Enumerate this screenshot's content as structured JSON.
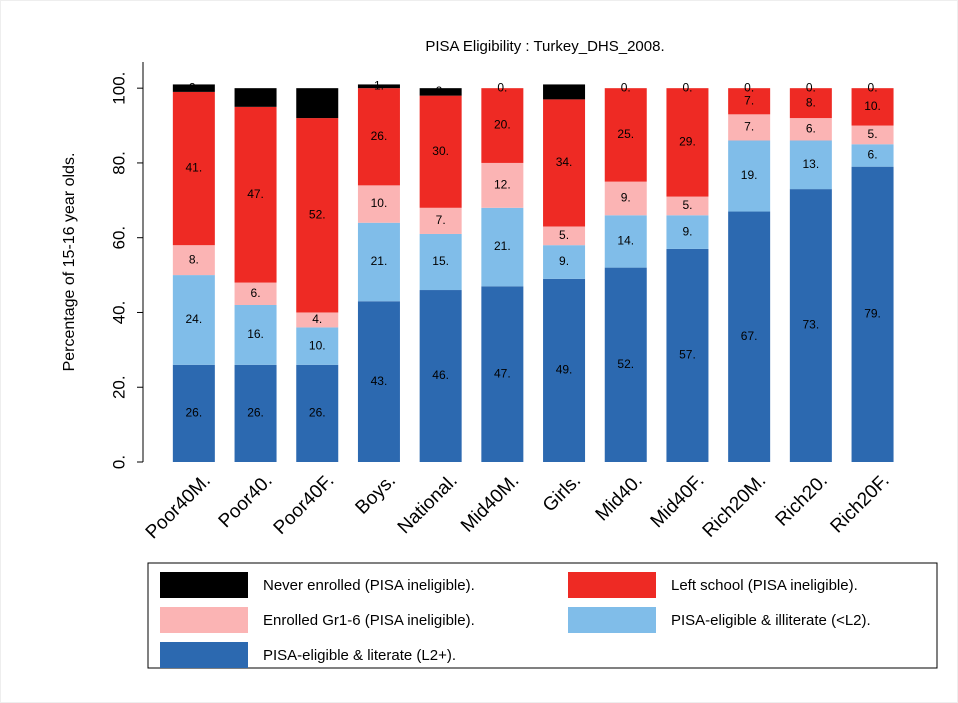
{
  "chart_data": {
    "type": "stacked_bar",
    "title": "PISA Eligibility : Turkey_DHS_2008.",
    "y_label": "Percentage of 15-16 year olds.",
    "categories": [
      "Poor40M.",
      "Poor40.",
      "Poor40F.",
      "Boys.",
      "National.",
      "Mid40M.",
      "Girls.",
      "Mid40.",
      "Mid40F.",
      "Rich20M.",
      "Rich20.",
      "Rich20F."
    ],
    "ylim": [
      0,
      107
    ],
    "yticks": [
      {
        "value": 0,
        "label": "0."
      },
      {
        "value": 20,
        "label": "20."
      },
      {
        "value": 40,
        "label": "40."
      },
      {
        "value": 60,
        "label": "60."
      },
      {
        "value": 80,
        "label": "80."
      },
      {
        "value": 100,
        "label": "100."
      }
    ],
    "series": [
      {
        "name": "Never enrolled (PISA ineligible).",
        "color": "#000000",
        "values": [
          2,
          5,
          8,
          1,
          2,
          0,
          4,
          0,
          0,
          0,
          0,
          0
        ],
        "value_labels": [
          "2.",
          "5.",
          "8.",
          "1.",
          "2.",
          "0.",
          "4.",
          "0.",
          "0.",
          "0.",
          "0.",
          "0."
        ]
      },
      {
        "name": "Left school (PISA ineligible).",
        "color": "#ee2a24",
        "values": [
          41,
          47,
          52,
          26,
          30,
          20,
          34,
          25,
          29,
          7,
          8,
          10
        ],
        "value_labels": [
          "41.",
          "47.",
          "52.",
          "26.",
          "30.",
          "20.",
          "34.",
          "25.",
          "29.",
          "7.",
          "8.",
          "10."
        ]
      },
      {
        "name": "Enrolled Gr1-6 (PISA ineligible).",
        "color": "#fbb4b4",
        "values": [
          8,
          6,
          4,
          10,
          7,
          12,
          5,
          9,
          5,
          7,
          6,
          5
        ],
        "value_labels": [
          "8.",
          "6.",
          "4.",
          "10.",
          "7.",
          "12.",
          "5.",
          "9.",
          "5.",
          "7.",
          "6.",
          "5."
        ]
      },
      {
        "name": "PISA-eligible & illiterate (<L2).",
        "color": "#80bde9",
        "values": [
          24,
          16,
          10,
          21,
          15,
          21,
          9,
          14,
          9,
          19,
          13,
          6
        ],
        "value_labels": [
          "24.",
          "16.",
          "10.",
          "21.",
          "15.",
          "21.",
          "9.",
          "14.",
          "9.",
          "19.",
          "13.",
          "6."
        ]
      },
      {
        "name": "PISA-eligible & literate (L2+).",
        "color": "#2c69b0",
        "values": [
          26,
          26,
          26,
          43,
          46,
          47,
          49,
          52,
          57,
          67,
          73,
          79
        ],
        "value_labels": [
          "26.",
          "26.",
          "26.",
          "43.",
          "46.",
          "47.",
          "49.",
          "52.",
          "57.",
          "67.",
          "73.",
          "79."
        ]
      }
    ]
  }
}
